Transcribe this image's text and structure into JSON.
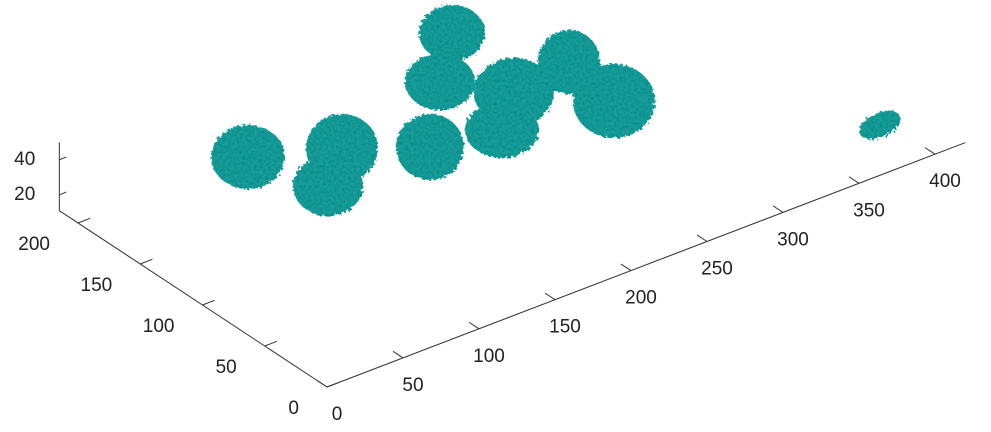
{
  "chart_data": {
    "type": "isosurface",
    "color": "#1f9e9a",
    "xlim": [
      0,
      420
    ],
    "xticks": [
      0,
      50,
      100,
      150,
      200,
      250,
      300,
      350,
      400
    ],
    "ylim": [
      0,
      215
    ],
    "yticks": [
      0,
      50,
      100,
      150,
      200
    ],
    "zlim": [
      11,
      50
    ],
    "zticks": [
      20,
      40
    ]
  }
}
